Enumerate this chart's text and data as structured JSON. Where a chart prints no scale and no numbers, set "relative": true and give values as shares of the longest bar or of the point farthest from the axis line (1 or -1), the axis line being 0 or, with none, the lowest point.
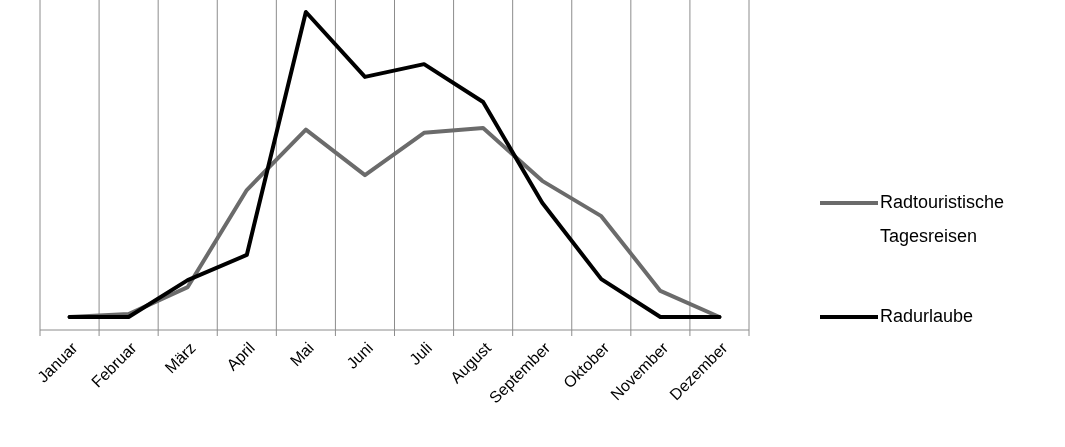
{
  "chart_data": {
    "type": "line",
    "relative": true,
    "categories": [
      "Januar",
      "Februar",
      "März",
      "April",
      "Mai",
      "Juni",
      "Juli",
      "August",
      "September",
      "Oktober",
      "November",
      "Dezember"
    ],
    "series": [
      {
        "name": "Radtouristische Tagesreisen",
        "color": "#6b6b6b",
        "values": [
          0.041,
          0.05,
          0.135,
          0.44,
          0.63,
          0.487,
          0.62,
          0.635,
          0.469,
          0.358,
          0.123,
          0.041
        ]
      },
      {
        "name": "Radurlaube",
        "color": "#000000",
        "values": [
          0.041,
          0.041,
          0.157,
          0.236,
          1,
          0.796,
          0.836,
          0.717,
          0.4,
          0.16,
          0.041,
          0.041
        ]
      }
    ],
    "grid": "x",
    "legend": "right",
    "marker": "none",
    "line_style": "solid"
  }
}
